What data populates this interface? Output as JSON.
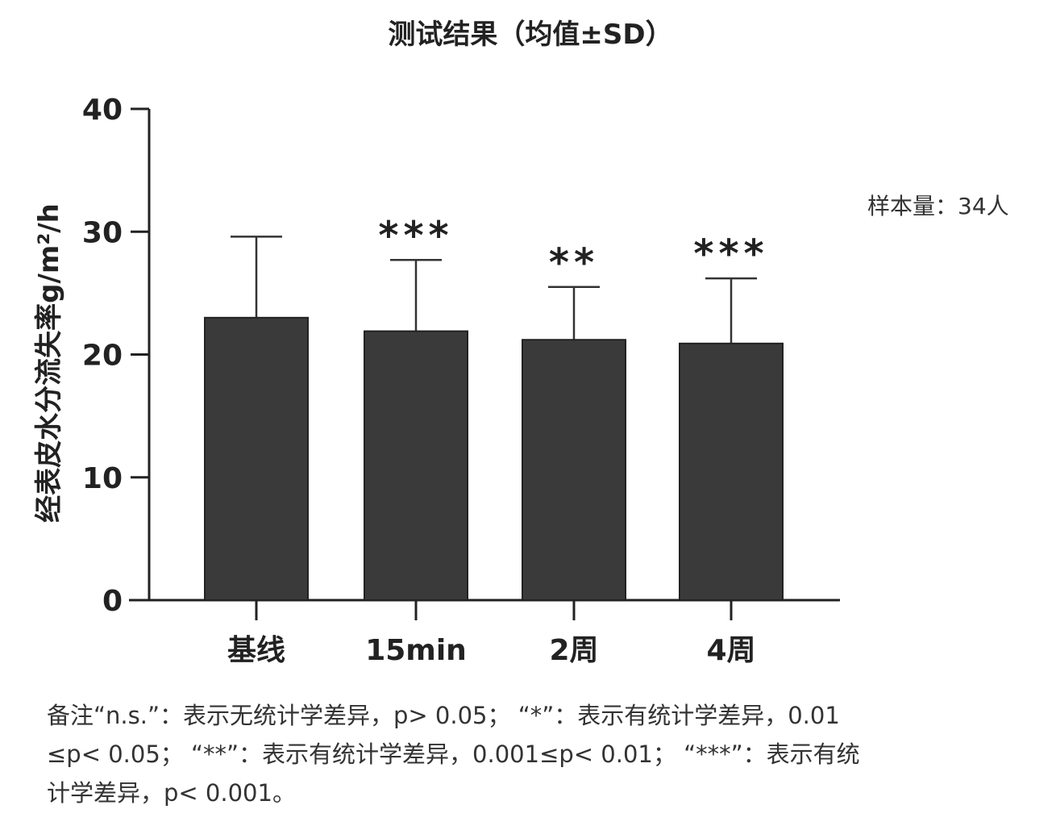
{
  "chart_data": {
    "type": "bar",
    "title": "测试结果（均值±SD）",
    "ylabel": "经表皮水分流失率g/m²/h",
    "xlabel": "",
    "categories": [
      "基线",
      "15min",
      "2周",
      "4周"
    ],
    "values": [
      23.0,
      21.9,
      21.2,
      20.9
    ],
    "error_sd": [
      6.6,
      5.8,
      4.3,
      5.3
    ],
    "significance": [
      "",
      "***",
      "**",
      "***"
    ],
    "ylim": [
      0,
      40
    ],
    "yticks": [
      0,
      10,
      20,
      30,
      40
    ],
    "grid": false,
    "bar_color": "#3a3a3a",
    "annotation": "样本量：34人"
  },
  "footnote": {
    "lines": [
      "备注“n.s.”：表示无统计学差异，p> 0.05；  “*”：表示有统计学差异，0.01",
      "≤p< 0.05；  “**”：表示有统计学差异，0.001≤p< 0.01；  “***”：表示有统",
      "计学差异，p< 0.001。"
    ]
  }
}
